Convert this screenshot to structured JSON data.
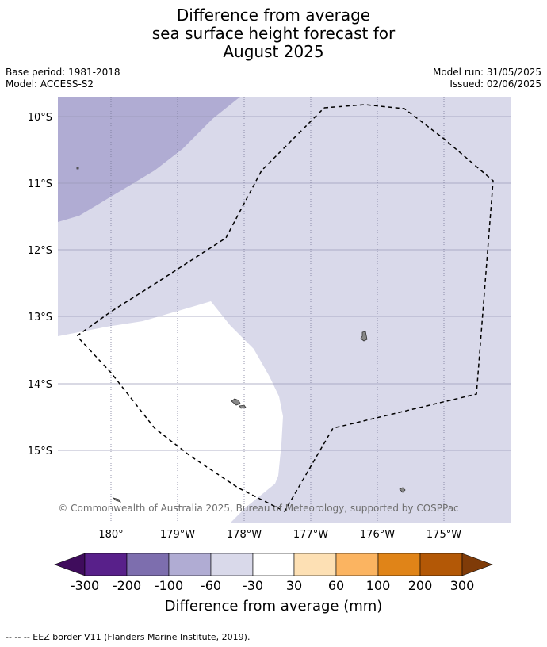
{
  "title": {
    "line1": "Difference from average",
    "line2": "sea surface height forecast for",
    "line3": "August 2025"
  },
  "meta": {
    "base_period": "Base period: 1981-2018",
    "model": "Model: ACCESS-S2",
    "model_run": "Model run: 31/05/2025",
    "issued": "Issued: 02/06/2025"
  },
  "map": {
    "lat_labels": [
      "10°S",
      "11°S",
      "12°S",
      "13°S",
      "14°S",
      "15°S"
    ],
    "lon_labels": [
      "180°",
      "179°W",
      "178°W",
      "177°W",
      "176°W",
      "175°W"
    ],
    "copyright": "© Commonwealth of Australia 2025, Bureau of Meteorology, supported by COSPPac",
    "colors": {
      "anomaly_neg100_neg60": "#b0acd3",
      "anomaly_neg60_neg30": "#d9d9ea",
      "anomaly_neg30_30": "#ffffff",
      "land": "#888888",
      "eez_line": "#000000"
    }
  },
  "colorbar": {
    "title": "Difference from average (mm)",
    "tick_labels": [
      "-300",
      "-200",
      "-100",
      "-60",
      "-30",
      "30",
      "60",
      "100",
      "200",
      "300"
    ],
    "colors": [
      "#3f0c5c",
      "#58208a",
      "#7d6eae",
      "#b0acd3",
      "#d9d9ea",
      "#ffffff",
      "#fde0b4",
      "#fbb461",
      "#e08418",
      "#b35806",
      "#7f3b08"
    ]
  },
  "footnote": "--  --  -- EEZ border V11 (Flanders Marine Institute, 2019)."
}
